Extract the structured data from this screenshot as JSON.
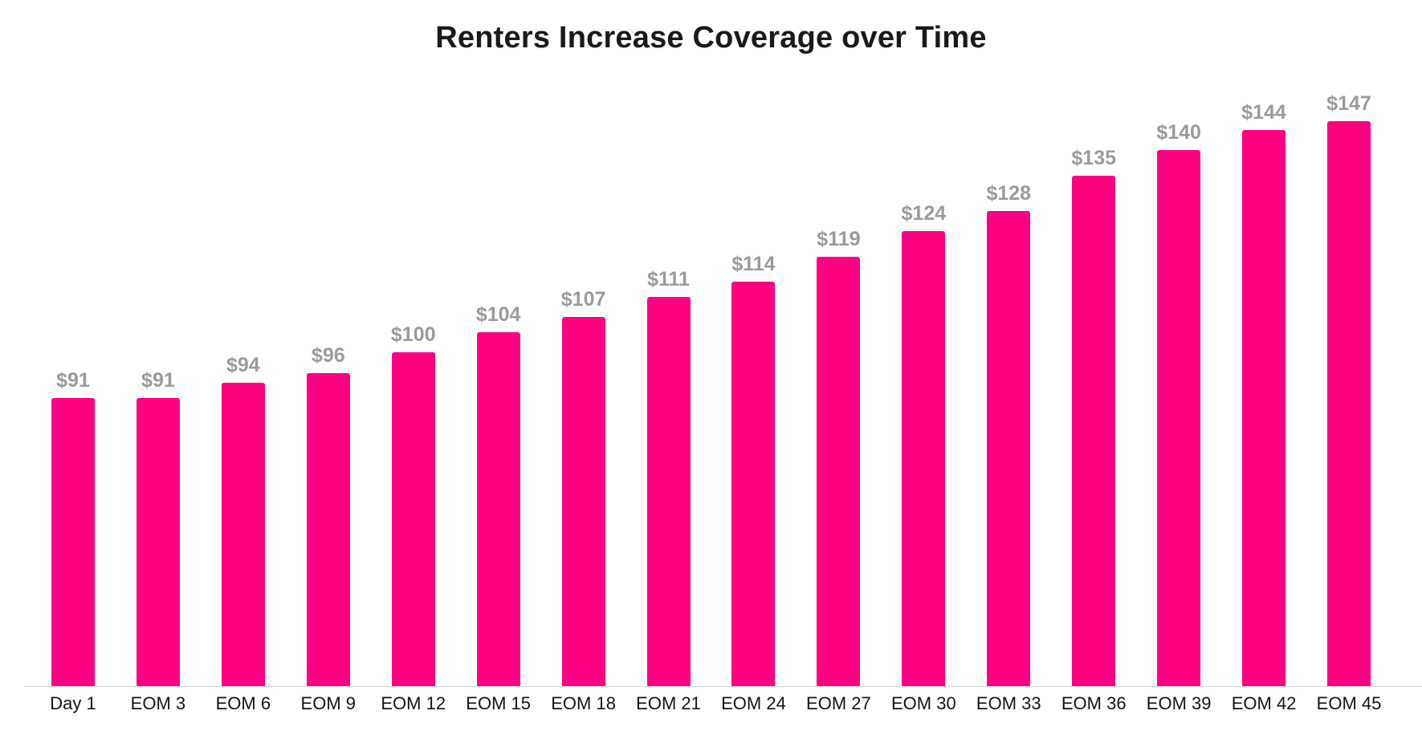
{
  "title": "Renters Increase Coverage over Time",
  "colors": {
    "bar": "#FF0083",
    "value_label": "#9b9b9b",
    "axis_label": "#141414",
    "axis_line": "#d8d8d8",
    "title": "#1a1a1a"
  },
  "chart_data": {
    "type": "bar",
    "title": "Renters Increase Coverage over Time",
    "categories": [
      "Day 1",
      "EOM 3",
      "EOM 6",
      "EOM 9",
      "EOM 12",
      "EOM 15",
      "EOM 18",
      "EOM 21",
      "EOM 24",
      "EOM 27",
      "EOM 30",
      "EOM 33",
      "EOM 36",
      "EOM 39",
      "EOM 42",
      "EOM 45"
    ],
    "values": [
      91,
      91,
      94,
      96,
      100,
      104,
      107,
      111,
      114,
      119,
      124,
      128,
      135,
      140,
      144,
      147
    ],
    "value_labels": [
      "$91",
      "$91",
      "$94",
      "$96",
      "$100",
      "$104",
      "$107",
      "$111",
      "$114",
      "$119",
      "$124",
      "$128",
      "$135",
      "$140",
      "$144",
      "$147"
    ],
    "xlabel": "",
    "ylabel": "",
    "ylim": [
      34,
      151.5
    ],
    "grid": false,
    "legend": false,
    "bar_color": "#FF0083",
    "value_labels_position": "above-bars",
    "x_axis_position": "bottom"
  }
}
